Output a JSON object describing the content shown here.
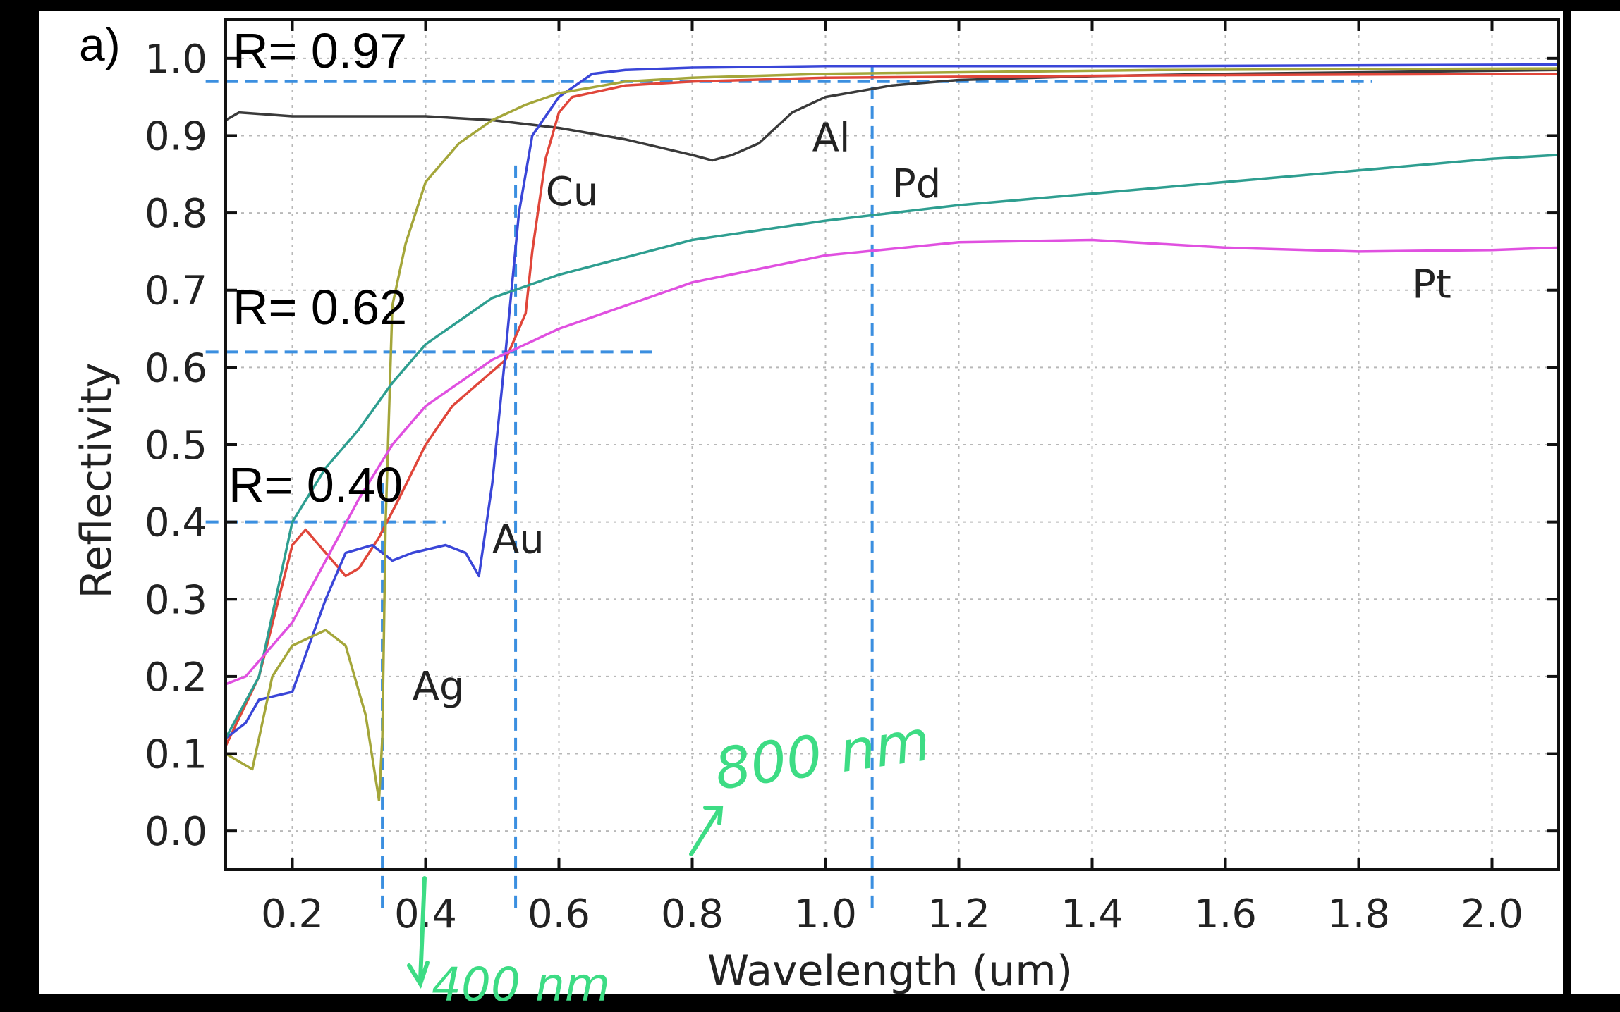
{
  "panel_label": "a)",
  "annotations": {
    "r_097": "R= 0.97",
    "r_062": "R= 0.62",
    "r_040": "R= 0.40",
    "hand_800": "800 nm",
    "hand_400": "400 nm"
  },
  "colors": {
    "Al": "#3a3a3a",
    "Cu": "#e0463a",
    "Au": "#3a46d8",
    "Ag": "#a4a63a",
    "Pd": "#2e9e90",
    "Pt": "#e050e0",
    "guides": "#3b8fe0",
    "handwriting": "#3ddc84"
  },
  "chart_data": {
    "type": "line",
    "xlabel": "Wavelength (um)",
    "ylabel": "Reflectivity",
    "xlim": [
      0.1,
      2.1
    ],
    "ylim": [
      -0.05,
      1.05
    ],
    "grid": true,
    "x_ticks": [
      "0.2",
      "0.4",
      "0.6",
      "0.8",
      "1.0",
      "1.2",
      "1.4",
      "1.6",
      "1.8",
      "2.0"
    ],
    "y_ticks": [
      "0.0",
      "0.1",
      "0.2",
      "0.3",
      "0.4",
      "0.5",
      "0.6",
      "0.7",
      "0.8",
      "0.9",
      "1.0"
    ],
    "series": [
      {
        "name": "Al",
        "points": [
          [
            0.1,
            0.92
          ],
          [
            0.12,
            0.93
          ],
          [
            0.2,
            0.925
          ],
          [
            0.3,
            0.925
          ],
          [
            0.4,
            0.925
          ],
          [
            0.5,
            0.92
          ],
          [
            0.6,
            0.91
          ],
          [
            0.7,
            0.895
          ],
          [
            0.8,
            0.875
          ],
          [
            0.83,
            0.868
          ],
          [
            0.86,
            0.875
          ],
          [
            0.9,
            0.89
          ],
          [
            0.95,
            0.93
          ],
          [
            1.0,
            0.95
          ],
          [
            1.1,
            0.965
          ],
          [
            1.2,
            0.972
          ],
          [
            1.4,
            0.977
          ],
          [
            1.6,
            0.98
          ],
          [
            1.8,
            0.982
          ],
          [
            2.0,
            0.984
          ],
          [
            2.1,
            0.985
          ]
        ]
      },
      {
        "name": "Cu",
        "points": [
          [
            0.1,
            0.11
          ],
          [
            0.15,
            0.2
          ],
          [
            0.2,
            0.37
          ],
          [
            0.22,
            0.39
          ],
          [
            0.25,
            0.36
          ],
          [
            0.28,
            0.33
          ],
          [
            0.3,
            0.34
          ],
          [
            0.33,
            0.38
          ],
          [
            0.36,
            0.43
          ],
          [
            0.4,
            0.5
          ],
          [
            0.44,
            0.55
          ],
          [
            0.48,
            0.58
          ],
          [
            0.52,
            0.61
          ],
          [
            0.55,
            0.67
          ],
          [
            0.56,
            0.75
          ],
          [
            0.58,
            0.87
          ],
          [
            0.6,
            0.93
          ],
          [
            0.62,
            0.95
          ],
          [
            0.7,
            0.965
          ],
          [
            0.8,
            0.97
          ],
          [
            1.0,
            0.975
          ],
          [
            1.5,
            0.978
          ],
          [
            2.1,
            0.98
          ]
        ]
      },
      {
        "name": "Au",
        "points": [
          [
            0.1,
            0.12
          ],
          [
            0.13,
            0.14
          ],
          [
            0.15,
            0.17
          ],
          [
            0.2,
            0.18
          ],
          [
            0.25,
            0.3
          ],
          [
            0.28,
            0.36
          ],
          [
            0.32,
            0.37
          ],
          [
            0.35,
            0.35
          ],
          [
            0.38,
            0.36
          ],
          [
            0.43,
            0.37
          ],
          [
            0.46,
            0.36
          ],
          [
            0.48,
            0.33
          ],
          [
            0.5,
            0.45
          ],
          [
            0.52,
            0.62
          ],
          [
            0.54,
            0.8
          ],
          [
            0.56,
            0.9
          ],
          [
            0.6,
            0.95
          ],
          [
            0.65,
            0.98
          ],
          [
            0.7,
            0.985
          ],
          [
            0.8,
            0.988
          ],
          [
            1.0,
            0.99
          ],
          [
            1.5,
            0.99
          ],
          [
            2.1,
            0.992
          ]
        ]
      },
      {
        "name": "Ag",
        "points": [
          [
            0.1,
            0.1
          ],
          [
            0.14,
            0.08
          ],
          [
            0.17,
            0.2
          ],
          [
            0.2,
            0.24
          ],
          [
            0.25,
            0.26
          ],
          [
            0.28,
            0.24
          ],
          [
            0.31,
            0.15
          ],
          [
            0.33,
            0.04
          ],
          [
            0.335,
            0.12
          ],
          [
            0.34,
            0.4
          ],
          [
            0.35,
            0.68
          ],
          [
            0.37,
            0.76
          ],
          [
            0.4,
            0.84
          ],
          [
            0.45,
            0.89
          ],
          [
            0.5,
            0.92
          ],
          [
            0.55,
            0.94
          ],
          [
            0.6,
            0.955
          ],
          [
            0.7,
            0.97
          ],
          [
            0.8,
            0.975
          ],
          [
            1.0,
            0.98
          ],
          [
            1.5,
            0.985
          ],
          [
            2.1,
            0.987
          ]
        ]
      },
      {
        "name": "Pd",
        "points": [
          [
            0.1,
            0.12
          ],
          [
            0.15,
            0.2
          ],
          [
            0.2,
            0.4
          ],
          [
            0.25,
            0.47
          ],
          [
            0.3,
            0.52
          ],
          [
            0.35,
            0.58
          ],
          [
            0.4,
            0.63
          ],
          [
            0.5,
            0.69
          ],
          [
            0.6,
            0.72
          ],
          [
            0.8,
            0.765
          ],
          [
            1.0,
            0.79
          ],
          [
            1.2,
            0.81
          ],
          [
            1.4,
            0.825
          ],
          [
            1.6,
            0.84
          ],
          [
            1.8,
            0.855
          ],
          [
            2.0,
            0.87
          ],
          [
            2.1,
            0.875
          ]
        ]
      },
      {
        "name": "Pt",
        "points": [
          [
            0.1,
            0.19
          ],
          [
            0.13,
            0.2
          ],
          [
            0.15,
            0.22
          ],
          [
            0.2,
            0.27
          ],
          [
            0.25,
            0.35
          ],
          [
            0.3,
            0.43
          ],
          [
            0.35,
            0.5
          ],
          [
            0.4,
            0.55
          ],
          [
            0.5,
            0.61
          ],
          [
            0.6,
            0.65
          ],
          [
            0.8,
            0.71
          ],
          [
            1.0,
            0.745
          ],
          [
            1.2,
            0.762
          ],
          [
            1.4,
            0.765
          ],
          [
            1.6,
            0.755
          ],
          [
            1.8,
            0.75
          ],
          [
            2.0,
            0.752
          ],
          [
            2.1,
            0.755
          ]
        ]
      }
    ],
    "series_labels": [
      {
        "text": "Al",
        "x": 0.98,
        "y": 0.88
      },
      {
        "text": "Cu",
        "x": 0.58,
        "y": 0.81
      },
      {
        "text": "Au",
        "x": 0.5,
        "y": 0.36
      },
      {
        "text": "Ag",
        "x": 0.38,
        "y": 0.17
      },
      {
        "text": "Pd",
        "x": 1.1,
        "y": 0.82
      },
      {
        "text": "Pt",
        "x": 1.88,
        "y": 0.69
      }
    ],
    "guides": [
      {
        "kind": "h",
        "y": 0.97,
        "x0": 0.07,
        "x1": 1.82
      },
      {
        "kind": "h",
        "y": 0.62,
        "x0": 0.07,
        "x1": 0.74
      },
      {
        "kind": "h",
        "y": 0.4,
        "x0": 0.07,
        "x1": 0.43
      },
      {
        "kind": "v",
        "x": 0.335,
        "y0": -0.1,
        "y1": 0.45
      },
      {
        "kind": "v",
        "x": 0.535,
        "y0": -0.1,
        "y1": 0.87
      },
      {
        "kind": "v",
        "x": 1.07,
        "y0": -0.1,
        "y1": 0.99
      }
    ]
  }
}
